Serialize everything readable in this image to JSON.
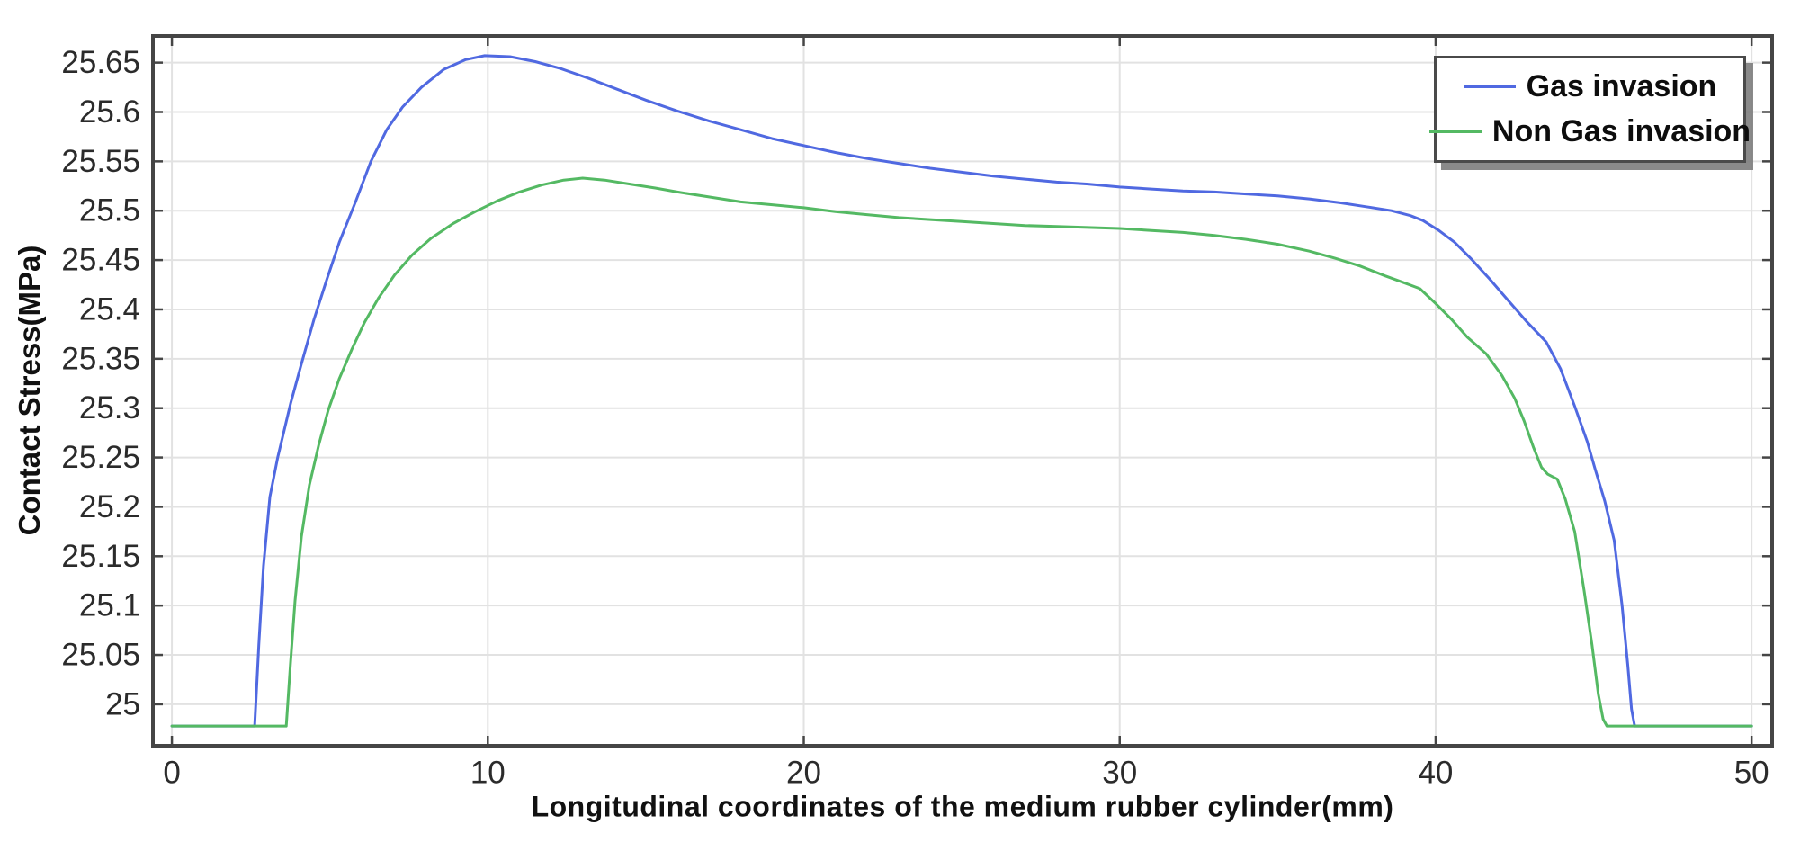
{
  "chart_data": {
    "type": "line",
    "title": "",
    "xlabel": "Longitudinal coordinates of the medium rubber cylinder(mm)",
    "ylabel": "Contact Stress(MPa)",
    "xlim": [
      -0.6,
      50.65
    ],
    "ylim": [
      24.958,
      25.677
    ],
    "grid": true,
    "legend_position": "top-right",
    "x_ticks": [
      0,
      10,
      20,
      30,
      40,
      50
    ],
    "x_tick_labels": [
      "0",
      "10",
      "20",
      "30",
      "40",
      "50"
    ],
    "y_ticks": [
      25,
      25.05,
      25.1,
      25.15,
      25.2,
      25.25,
      25.3,
      25.35,
      25.4,
      25.45,
      25.5,
      25.55,
      25.6,
      25.65
    ],
    "y_tick_labels": [
      "25",
      "25.05",
      "25.1",
      "25.15",
      "25.2",
      "25.25",
      "25.3",
      "25.35",
      "25.4",
      "25.45",
      "25.5",
      "25.55",
      "25.6",
      "25.65"
    ],
    "series": [
      {
        "name": "Gas invasion",
        "color": "#5069e1",
        "points": [
          [
            0,
            24.978
          ],
          [
            2.62,
            24.978
          ],
          [
            2.75,
            25.06
          ],
          [
            2.9,
            25.14
          ],
          [
            3.1,
            25.21
          ],
          [
            3.35,
            25.25
          ],
          [
            3.76,
            25.305
          ],
          [
            4.1,
            25.345
          ],
          [
            4.5,
            25.39
          ],
          [
            4.9,
            25.43
          ],
          [
            5.3,
            25.468
          ],
          [
            5.8,
            25.508
          ],
          [
            6.3,
            25.55
          ],
          [
            6.8,
            25.582
          ],
          [
            7.3,
            25.605
          ],
          [
            7.9,
            25.625
          ],
          [
            8.6,
            25.643
          ],
          [
            9.3,
            25.653
          ],
          [
            9.9,
            25.657
          ],
          [
            10.7,
            25.656
          ],
          [
            11.5,
            25.651
          ],
          [
            12.3,
            25.644
          ],
          [
            13.2,
            25.634
          ],
          [
            14.1,
            25.623
          ],
          [
            15,
            25.612
          ],
          [
            16,
            25.601
          ],
          [
            17,
            25.591
          ],
          [
            18,
            25.582
          ],
          [
            19,
            25.573
          ],
          [
            20,
            25.566
          ],
          [
            21,
            25.559
          ],
          [
            22,
            25.553
          ],
          [
            23,
            25.548
          ],
          [
            24,
            25.543
          ],
          [
            25,
            25.539
          ],
          [
            26,
            25.535
          ],
          [
            27,
            25.532
          ],
          [
            28,
            25.529
          ],
          [
            29,
            25.527
          ],
          [
            30,
            25.524
          ],
          [
            31,
            25.522
          ],
          [
            32,
            25.52
          ],
          [
            33,
            25.519
          ],
          [
            34,
            25.517
          ],
          [
            35,
            25.515
          ],
          [
            36,
            25.512
          ],
          [
            37,
            25.508
          ],
          [
            37.8,
            25.504
          ],
          [
            38.6,
            25.5
          ],
          [
            39.2,
            25.495
          ],
          [
            39.6,
            25.49
          ],
          [
            40.1,
            25.48
          ],
          [
            40.6,
            25.468
          ],
          [
            41.1,
            25.452
          ],
          [
            41.7,
            25.431
          ],
          [
            42.3,
            25.409
          ],
          [
            42.9,
            25.387
          ],
          [
            43.5,
            25.367
          ],
          [
            43.95,
            25.34
          ],
          [
            44.4,
            25.302
          ],
          [
            44.8,
            25.266
          ],
          [
            45.05,
            25.238
          ],
          [
            45.35,
            25.206
          ],
          [
            45.65,
            25.166
          ],
          [
            45.9,
            25.1
          ],
          [
            46.08,
            25.04
          ],
          [
            46.2,
            24.995
          ],
          [
            46.3,
            24.978
          ],
          [
            50,
            24.978
          ]
        ]
      },
      {
        "name": "Non Gas invasion",
        "color": "#54b963",
        "points": [
          [
            0,
            24.978
          ],
          [
            3.62,
            24.978
          ],
          [
            3.75,
            25.04
          ],
          [
            3.9,
            25.105
          ],
          [
            4.1,
            25.17
          ],
          [
            4.35,
            25.222
          ],
          [
            4.65,
            25.263
          ],
          [
            4.95,
            25.298
          ],
          [
            5.3,
            25.33
          ],
          [
            5.7,
            25.36
          ],
          [
            6.1,
            25.387
          ],
          [
            6.55,
            25.412
          ],
          [
            7.05,
            25.435
          ],
          [
            7.6,
            25.455
          ],
          [
            8.2,
            25.472
          ],
          [
            8.9,
            25.487
          ],
          [
            9.6,
            25.499
          ],
          [
            10.3,
            25.51
          ],
          [
            11,
            25.519
          ],
          [
            11.7,
            25.526
          ],
          [
            12.4,
            25.531
          ],
          [
            13,
            25.533
          ],
          [
            13.7,
            25.531
          ],
          [
            14.5,
            25.527
          ],
          [
            15.3,
            25.523
          ],
          [
            16,
            25.519
          ],
          [
            17,
            25.514
          ],
          [
            18,
            25.509
          ],
          [
            19,
            25.506
          ],
          [
            20,
            25.503
          ],
          [
            21,
            25.499
          ],
          [
            22,
            25.496
          ],
          [
            23,
            25.493
          ],
          [
            24,
            25.491
          ],
          [
            25,
            25.489
          ],
          [
            26,
            25.487
          ],
          [
            27,
            25.485
          ],
          [
            28,
            25.484
          ],
          [
            29,
            25.483
          ],
          [
            30,
            25.482
          ],
          [
            31,
            25.48
          ],
          [
            32,
            25.478
          ],
          [
            33,
            25.475
          ],
          [
            34,
            25.471
          ],
          [
            35,
            25.466
          ],
          [
            36,
            25.459
          ],
          [
            36.8,
            25.452
          ],
          [
            37.6,
            25.444
          ],
          [
            38.4,
            25.434
          ],
          [
            39,
            25.427
          ],
          [
            39.5,
            25.421
          ],
          [
            40,
            25.406
          ],
          [
            40.5,
            25.39
          ],
          [
            41,
            25.372
          ],
          [
            41.6,
            25.355
          ],
          [
            42.1,
            25.333
          ],
          [
            42.5,
            25.31
          ],
          [
            42.8,
            25.287
          ],
          [
            43.1,
            25.26
          ],
          [
            43.35,
            25.24
          ],
          [
            43.55,
            25.233
          ],
          [
            43.85,
            25.228
          ],
          [
            44.1,
            25.208
          ],
          [
            44.4,
            25.175
          ],
          [
            44.7,
            25.115
          ],
          [
            44.95,
            25.06
          ],
          [
            45.15,
            25.01
          ],
          [
            45.3,
            24.985
          ],
          [
            45.42,
            24.978
          ],
          [
            50,
            24.978
          ]
        ]
      }
    ]
  },
  "styles": {
    "background": "#ffffff",
    "plot_border_color": "#454545",
    "grid_color": "#e2e2e2",
    "tick_color": "#454545",
    "tick_label_color": "#2b2b2b",
    "axis_title_color": "#111111",
    "legend_border_color": "#4a4a4a",
    "legend_shadow_color": "#7d7d7d"
  }
}
